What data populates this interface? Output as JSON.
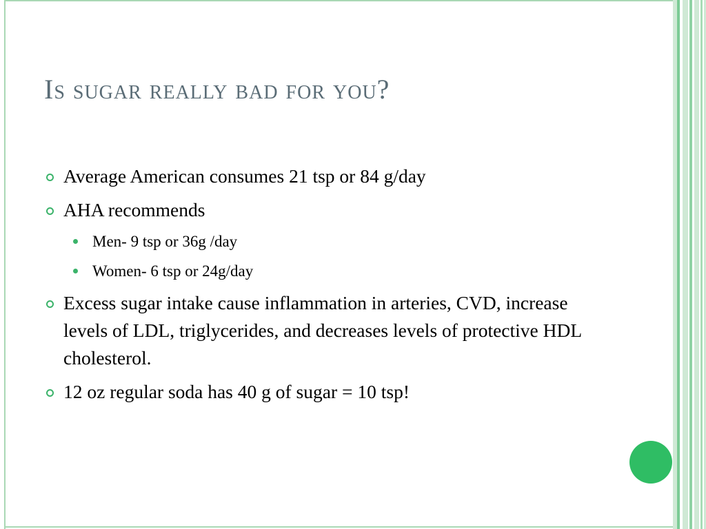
{
  "slide": {
    "title": "Is sugar really bad for you?",
    "bullets": [
      {
        "text": "Average American consumes 21 tsp or 84 g/day"
      },
      {
        "text": "AHA recommends",
        "sub": [
          "Men- 9 tsp or 36g /day",
          "Women- 6 tsp or 24g/day"
        ]
      },
      {
        "text": "Excess sugar intake cause inflammation in arteries, CVD, increase levels of LDL, triglycerides, and decreases levels of protective HDL cholesterol."
      },
      {
        "text": "12 oz regular soda has 40 g of sugar = 10 tsp!"
      }
    ]
  },
  "colors": {
    "title": "#5a6c76",
    "accent": "#3bb36a",
    "frame": "#a9d8b4",
    "circle": "#2fbd64"
  },
  "icons": {
    "bullet": "ring-bullet-icon",
    "sub_bullet": "dot-bullet-icon",
    "decoration": "green-circle"
  }
}
